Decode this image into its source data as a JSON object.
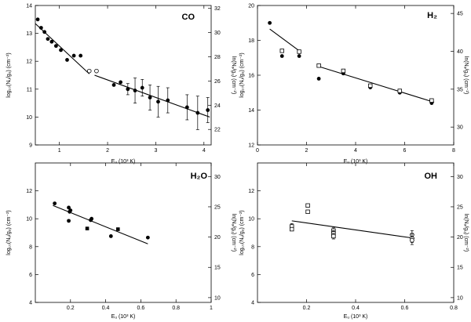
{
  "chart_data": [
    {
      "id": "co",
      "type": "scatter",
      "title": "CO",
      "xlabel": "Eᵤ (10³ K)",
      "ylabel": "log₁₀(Nᵤ/gᵤ) (cm⁻²)",
      "ylabel_right": "ln(Nᵤ/gᵤ) (cm⁻²)",
      "xlim": [
        0.5,
        4.15
      ],
      "ylim": [
        9,
        14
      ],
      "ylim_right": [
        20.72,
        32.24
      ],
      "xticks": [
        1,
        2,
        3,
        4
      ],
      "yticks": [
        9,
        10,
        11,
        12,
        13,
        14
      ],
      "yticks_right": [
        22,
        24,
        26,
        28,
        30,
        32
      ],
      "series": [
        {
          "name": "CO filled",
          "marker": "filled-circle",
          "points": [
            {
              "x": 0.55,
              "y": 13.5,
              "err": 0
            },
            {
              "x": 0.62,
              "y": 13.2,
              "err": 0
            },
            {
              "x": 0.69,
              "y": 13.05,
              "err": 0
            },
            {
              "x": 0.76,
              "y": 12.8,
              "err": 0
            },
            {
              "x": 0.84,
              "y": 12.7,
              "err": 0
            },
            {
              "x": 0.93,
              "y": 12.55,
              "err": 0
            },
            {
              "x": 1.03,
              "y": 12.4,
              "err": 0
            },
            {
              "x": 1.16,
              "y": 12.05,
              "err": 0
            },
            {
              "x": 1.3,
              "y": 12.2,
              "err": 0
            },
            {
              "x": 1.44,
              "y": 12.2,
              "err": 0
            },
            {
              "x": 2.13,
              "y": 11.15,
              "err": 0
            },
            {
              "x": 2.27,
              "y": 11.25,
              "err": 0
            },
            {
              "x": 2.42,
              "y": 11.0,
              "err": 0.2
            },
            {
              "x": 2.57,
              "y": 10.95,
              "err": 0.45
            },
            {
              "x": 2.72,
              "y": 11.05,
              "err": 0.3
            },
            {
              "x": 2.88,
              "y": 10.7,
              "err": 0.45
            },
            {
              "x": 3.05,
              "y": 10.55,
              "err": 0.55
            },
            {
              "x": 3.25,
              "y": 10.6,
              "err": 0.45
            },
            {
              "x": 3.65,
              "y": 10.35,
              "err": 0.45
            },
            {
              "x": 3.87,
              "y": 10.15,
              "err": 0.6
            },
            {
              "x": 4.08,
              "y": 10.25,
              "err": 0.45
            }
          ]
        },
        {
          "name": "CO open",
          "marker": "open-circle",
          "points": [
            {
              "x": 1.62,
              "y": 11.65,
              "err": 0
            },
            {
              "x": 1.77,
              "y": 11.65,
              "err": 0
            }
          ]
        }
      ],
      "fits": [
        {
          "x": [
            0.5,
            1.62
          ],
          "y": [
            13.35,
            11.55
          ]
        },
        {
          "x": [
            1.73,
            4.12
          ],
          "y": [
            11.5,
            10.0
          ]
        }
      ]
    },
    {
      "id": "h2",
      "type": "scatter",
      "title": "H₂",
      "xlabel": "Eᵤ (10³ K)",
      "ylabel": "log₁₀(Nᵤ/gᵤ) (cm⁻²)",
      "ylabel_right": "ln(Nᵤ/gᵤ) (cm⁻²)",
      "xlim": [
        0,
        8
      ],
      "ylim": [
        12,
        20
      ],
      "ylim_right": [
        27.64,
        46.05
      ],
      "xticks": [
        0,
        2,
        4,
        6,
        8
      ],
      "yticks": [
        12,
        14,
        16,
        18,
        20
      ],
      "yticks_right": [
        30,
        35,
        40,
        45
      ],
      "series": [
        {
          "name": "H2 filled",
          "marker": "filled-circle",
          "points": [
            {
              "x": 0.5,
              "y": 19.0
            },
            {
              "x": 1.0,
              "y": 17.1
            },
            {
              "x": 1.7,
              "y": 17.1
            },
            {
              "x": 2.5,
              "y": 15.8
            },
            {
              "x": 3.5,
              "y": 16.1
            },
            {
              "x": 4.6,
              "y": 15.3
            },
            {
              "x": 5.8,
              "y": 15.0
            },
            {
              "x": 7.1,
              "y": 14.4
            }
          ]
        },
        {
          "name": "H2 open",
          "marker": "open-square",
          "points": [
            {
              "x": 1.0,
              "y": 17.4
            },
            {
              "x": 1.7,
              "y": 17.35
            },
            {
              "x": 2.5,
              "y": 16.55
            },
            {
              "x": 3.5,
              "y": 16.25
            },
            {
              "x": 4.6,
              "y": 15.4
            },
            {
              "x": 5.8,
              "y": 15.1
            },
            {
              "x": 7.1,
              "y": 14.55
            }
          ]
        }
      ],
      "fits": [
        {
          "x": [
            0.5,
            1.7
          ],
          "y": [
            18.65,
            17.4
          ]
        },
        {
          "x": [
            2.5,
            7.2
          ],
          "y": [
            16.5,
            14.45
          ]
        }
      ]
    },
    {
      "id": "h2o",
      "type": "scatter",
      "title": "H₂O",
      "xlabel": "Eᵤ (10³ K)",
      "ylabel": "log₁₀(Nᵤ/gᵤ) (cm⁻²)",
      "ylabel_right": "ln(Nᵤ/gᵤ) (cm⁻²)",
      "xlim": [
        0,
        1.0
      ],
      "ylim": [
        4,
        14
      ],
      "ylim_right": [
        9.21,
        32.24
      ],
      "xticks": [
        0.2,
        0.4,
        0.6,
        0.8,
        1.0
      ],
      "yticks": [
        4,
        6,
        8,
        10,
        12
      ],
      "yticks_right": [
        10,
        15,
        20,
        25,
        30
      ],
      "series": [
        {
          "name": "H2O filled",
          "marker": "filled-circle",
          "points": [
            {
              "x": 0.11,
              "y": 11.1
            },
            {
              "x": 0.19,
              "y": 10.8
            },
            {
              "x": 0.195,
              "y": 10.5
            },
            {
              "x": 0.2,
              "y": 10.6
            },
            {
              "x": 0.19,
              "y": 9.85
            },
            {
              "x": 0.315,
              "y": 9.9
            },
            {
              "x": 0.32,
              "y": 10.0
            },
            {
              "x": 0.43,
              "y": 8.75
            },
            {
              "x": 0.64,
              "y": 8.65
            }
          ]
        },
        {
          "name": "H2O square",
          "marker": "filled-square",
          "points": [
            {
              "x": 0.295,
              "y": 9.3
            },
            {
              "x": 0.47,
              "y": 9.25
            }
          ]
        }
      ],
      "fits": [
        {
          "x": [
            0.1,
            0.64
          ],
          "y": [
            10.95,
            8.2
          ]
        }
      ]
    },
    {
      "id": "oh",
      "type": "scatter",
      "title": "OH",
      "xlabel": "Eᵤ (10³ K)",
      "ylabel": "log₁₀(Nᵤ/gᵤ) (cm⁻²)",
      "ylabel_right": "ln(Nᵤ/gᵤ) (cm⁻²)",
      "xlim": [
        0,
        0.8
      ],
      "ylim": [
        4,
        14
      ],
      "ylim_right": [
        9.21,
        32.24
      ],
      "xticks": [
        0.2,
        0.4,
        0.6,
        0.8
      ],
      "yticks": [
        4,
        6,
        8,
        10,
        12
      ],
      "yticks_right": [
        10,
        15,
        20,
        25,
        30
      ],
      "series": [
        {
          "name": "OH square",
          "marker": "open-square",
          "points": [
            {
              "x": 0.14,
              "y": 9.45,
              "err": 0.2
            },
            {
              "x": 0.14,
              "y": 9.25,
              "err": 0
            },
            {
              "x": 0.205,
              "y": 10.95,
              "err": 0
            },
            {
              "x": 0.205,
              "y": 10.5,
              "err": 0
            },
            {
              "x": 0.31,
              "y": 9.15,
              "err": 0.2
            },
            {
              "x": 0.31,
              "y": 8.95,
              "err": 0.2
            },
            {
              "x": 0.31,
              "y": 8.75,
              "err": 0.2
            }
          ]
        },
        {
          "name": "OH circle",
          "marker": "open-circle",
          "points": [
            {
              "x": 0.63,
              "y": 8.85,
              "err": 0.3
            },
            {
              "x": 0.63,
              "y": 8.6,
              "err": 0.3
            },
            {
              "x": 0.63,
              "y": 8.45,
              "err": 0.3
            }
          ]
        }
      ],
      "fits": [
        {
          "x": [
            0.14,
            0.64
          ],
          "y": [
            9.85,
            8.6
          ]
        }
      ]
    }
  ]
}
